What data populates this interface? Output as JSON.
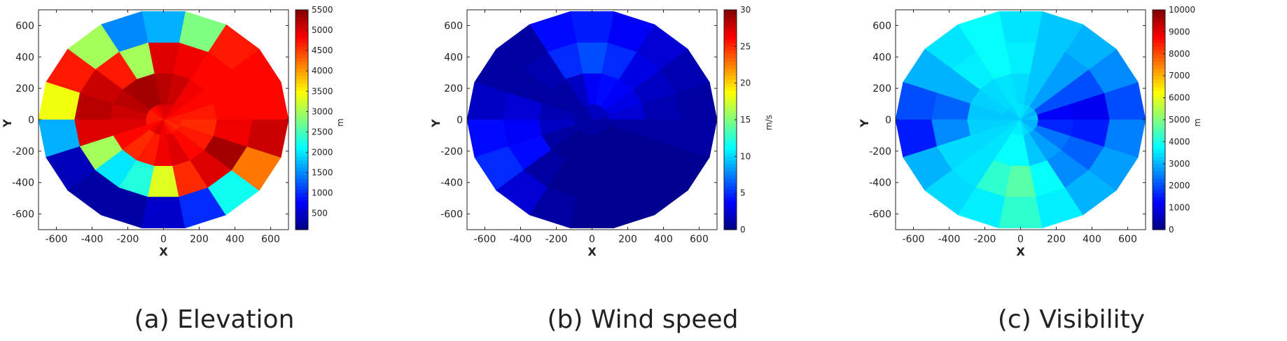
{
  "chart_data": [
    {
      "type": "heatmap",
      "caption": "(a) Elevation",
      "xlabel": "X",
      "ylabel": "Y",
      "xlim": [
        -700,
        700
      ],
      "ylim": [
        -700,
        700
      ],
      "xticks": [
        -600,
        -400,
        -200,
        0,
        200,
        400,
        600
      ],
      "yticks": [
        600,
        400,
        200,
        0,
        -200,
        -400,
        -600
      ],
      "colorbar": {
        "label": "m",
        "range": [
          100,
          5500
        ],
        "ticks": [
          5500,
          5000,
          4500,
          4000,
          3500,
          3000,
          2500,
          2000,
          1500,
          1000,
          500
        ]
      },
      "grid": "polar",
      "radial_edges": [
        0,
        100,
        300,
        500,
        700
      ],
      "sectors": 18,
      "sector_start_deg": 0,
      "values": [
        [
          4700,
          4800,
          4900,
          5000,
          5000,
          4900,
          4800,
          4700,
          4700,
          4700,
          4800,
          4900,
          5000,
          4900,
          4800,
          4700,
          4600,
          4700
        ],
        [
          4700,
          4800,
          4900,
          5100,
          5200,
          5300,
          5300,
          5200,
          5100,
          5000,
          4800,
          4600,
          4700,
          4900,
          5000,
          4800,
          4700,
          4600
        ],
        [
          4800,
          4800,
          4800,
          4900,
          5000,
          3000,
          4700,
          5100,
          5200,
          5000,
          3000,
          2000,
          2300,
          3300,
          4600,
          5000,
          5300,
          4900
        ],
        [
          4800,
          4800,
          4700,
          2800,
          1700,
          1500,
          3000,
          4700,
          3400,
          1700,
          400,
          300,
          300,
          500,
          1000,
          2200,
          4200,
          5100
        ]
      ]
    },
    {
      "type": "heatmap",
      "caption": "(b) Wind speed",
      "xlabel": "X",
      "ylabel": "Y",
      "xlim": [
        -700,
        700
      ],
      "ylim": [
        -700,
        700
      ],
      "xticks": [
        -600,
        -400,
        -200,
        0,
        200,
        400,
        600
      ],
      "yticks": [
        600,
        400,
        200,
        0,
        -200,
        -400,
        -600
      ],
      "colorbar": {
        "label": "m/s",
        "range": [
          0,
          30
        ],
        "ticks": [
          30,
          25,
          20,
          15,
          10,
          5,
          0
        ]
      },
      "grid": "polar",
      "radial_edges": [
        0,
        100,
        300,
        500,
        700
      ],
      "sectors": 18,
      "sector_start_deg": 0,
      "values": [
        [
          1.5,
          2,
          2,
          2,
          2,
          1.5,
          1,
          1,
          1,
          1,
          1,
          1,
          1,
          1,
          1,
          1,
          1,
          1
        ],
        [
          2.5,
          3,
          3.5,
          4,
          3.5,
          2,
          1,
          1,
          1.5,
          2,
          1,
          0.5,
          0.5,
          0.5,
          0.5,
          0.5,
          0.5,
          1
        ],
        [
          1.5,
          2,
          3,
          5,
          6,
          5,
          1.5,
          1,
          2.5,
          3.5,
          4,
          1,
          0.5,
          0.5,
          0.5,
          0.5,
          0.5,
          1
        ],
        [
          1,
          1.5,
          2.5,
          3.5,
          4.5,
          4,
          1,
          1,
          2,
          4,
          5,
          2.5,
          1,
          0.5,
          0.5,
          0.5,
          0.5,
          1
        ]
      ]
    },
    {
      "type": "heatmap",
      "caption": "(c) Visibility",
      "xlabel": "X",
      "ylabel": "Y",
      "xlim": [
        -700,
        700
      ],
      "ylim": [
        -700,
        700
      ],
      "xticks": [
        -600,
        -400,
        -200,
        0,
        200,
        400,
        600
      ],
      "yticks": [
        600,
        400,
        200,
        0,
        -200,
        -400,
        -600
      ],
      "colorbar": {
        "label": "m",
        "range": [
          0,
          10000
        ],
        "ticks": [
          10000,
          9000,
          8000,
          7000,
          6000,
          5000,
          4000,
          3000,
          2000,
          1000,
          0
        ]
      },
      "grid": "polar",
      "radial_edges": [
        0,
        100,
        300,
        500,
        700
      ],
      "sectors": 18,
      "sector_start_deg": 0,
      "values": [
        [
          3200,
          3000,
          3200,
          3400,
          3500,
          3500,
          3300,
          3200,
          3200,
          3300,
          3400,
          3500,
          3600,
          3600,
          3400,
          3200,
          3000,
          3000
        ],
        [
          1200,
          2000,
          2800,
          3200,
          3400,
          3500,
          3400,
          3300,
          3200,
          3300,
          3400,
          3500,
          3800,
          3800,
          3200,
          2800,
          2400,
          1600
        ],
        [
          1100,
          2000,
          2800,
          3200,
          3600,
          3800,
          3600,
          3000,
          2200,
          2600,
          3400,
          3500,
          4200,
          4600,
          3800,
          2600,
          2200,
          1500
        ],
        [
          2000,
          2600,
          3000,
          3200,
          3500,
          3800,
          3500,
          3000,
          2000,
          1500,
          3000,
          3400,
          3600,
          4200,
          3600,
          3000,
          2800,
          2500
        ]
      ]
    }
  ]
}
